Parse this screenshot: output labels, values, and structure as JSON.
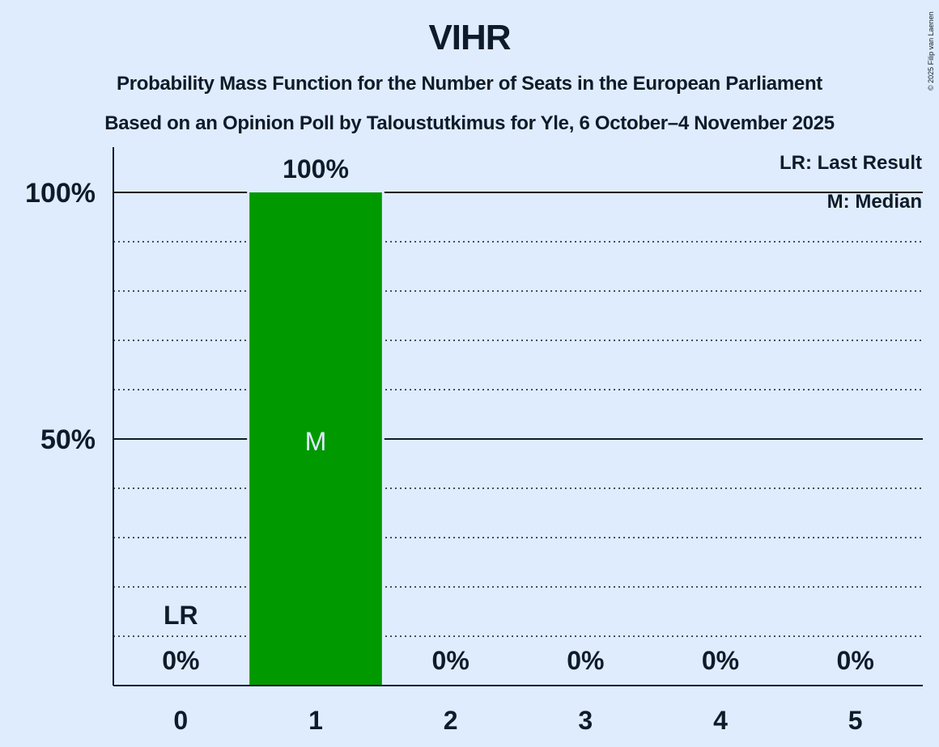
{
  "header": {
    "title": "VIHR",
    "subtitle1": "Probability Mass Function for the Number of Seats in the European Parliament",
    "subtitle2": "Based on an Opinion Poll by Taloustutkimus for Yle, 6 October–4 November 2025"
  },
  "copyright": "© 2025 Filip van Laenen",
  "legend": {
    "lr": "LR: Last Result",
    "m": "M: Median"
  },
  "colors": {
    "background": "#dfecfd",
    "bar": "#009900",
    "text": "#0d1b2a"
  },
  "chart_data": {
    "type": "bar",
    "title": "VIHR",
    "subtitle": "Probability Mass Function for the Number of Seats in the European Parliament",
    "categories": [
      "0",
      "1",
      "2",
      "3",
      "4",
      "5"
    ],
    "values": [
      0,
      100,
      0,
      0,
      0,
      0
    ],
    "value_labels": [
      "0%",
      "100%",
      "0%",
      "0%",
      "0%",
      "0%"
    ],
    "xlabel": "",
    "ylabel": "",
    "ylim": [
      0,
      100
    ],
    "yticks": [
      "50%",
      "100%"
    ],
    "grid": "dotted every 10%, solid at 50% and 100%",
    "annotations": [
      {
        "category": "0",
        "text": "LR",
        "meaning": "Last Result"
      },
      {
        "category": "1",
        "text": "M",
        "meaning": "Median"
      }
    ],
    "legend_position": "top-right"
  }
}
